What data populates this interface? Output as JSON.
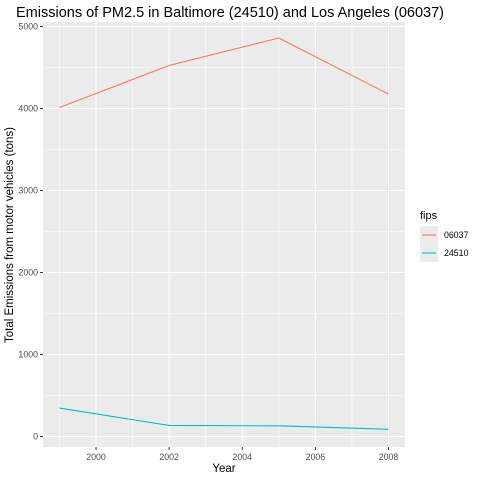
{
  "chart_data": {
    "type": "line",
    "title": "Emissions of PM2.5 in Baltimore (24510) and Los Angeles (06037)",
    "xlabel": "Year",
    "ylabel": "Total Emissions from motor vehicles (tons)",
    "x": [
      1999,
      2002,
      2005,
      2008
    ],
    "xlim": [
      1998.55,
      2008.45
    ],
    "ylim": [
      -128,
      5055
    ],
    "x_ticks": [
      2000,
      2002,
      2004,
      2006,
      2008
    ],
    "y_ticks": [
      0,
      1000,
      2000,
      3000,
      4000,
      5000
    ],
    "grid": true,
    "legend": {
      "title": "fips",
      "position": "right"
    },
    "series": [
      {
        "name": "06037",
        "color": "#F8766D",
        "values": [
          4012,
          4525,
          4860,
          4175
        ]
      },
      {
        "name": "24510",
        "color": "#00BFC4",
        "values": [
          347,
          135,
          130,
          88
        ]
      }
    ],
    "colors": {
      "panel_background": "#EBEBEB",
      "gridline": "#FFFFFF",
      "tick_text": "#4D4D4D",
      "text": "#000000"
    }
  }
}
